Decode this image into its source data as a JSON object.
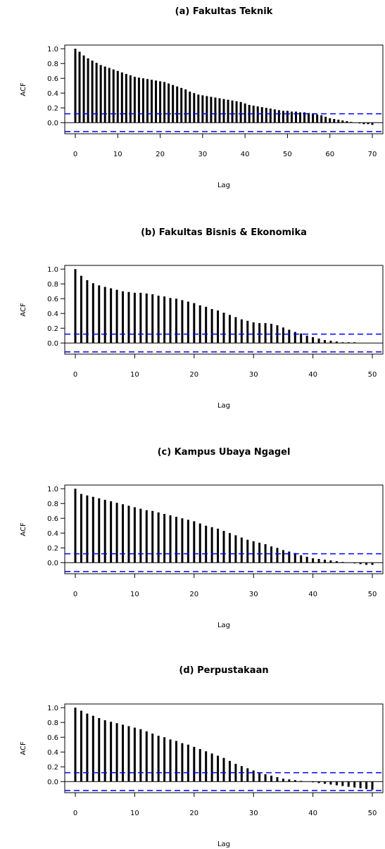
{
  "chart_data": [
    {
      "type": "bar",
      "title": "(a) Fakultas Teknik",
      "xlabel": "Lag",
      "ylabel": "ACF",
      "xlim": [
        0,
        70
      ],
      "ylim": [
        -0.1,
        1.0
      ],
      "xticks": [
        0,
        10,
        20,
        30,
        40,
        50,
        60,
        70
      ],
      "yticks": [
        0.0,
        0.2,
        0.4,
        0.6,
        0.8,
        1.0
      ],
      "ci": [
        0.12,
        -0.12
      ],
      "x": [
        0,
        1,
        2,
        3,
        4,
        5,
        6,
        7,
        8,
        9,
        10,
        11,
        12,
        13,
        14,
        15,
        16,
        17,
        18,
        19,
        20,
        21,
        22,
        23,
        24,
        25,
        26,
        27,
        28,
        29,
        30,
        31,
        32,
        33,
        34,
        35,
        36,
        37,
        38,
        39,
        40,
        41,
        42,
        43,
        44,
        45,
        46,
        47,
        48,
        49,
        50,
        51,
        52,
        53,
        54,
        55,
        56,
        57,
        58,
        59,
        60,
        61,
        62,
        63,
        64,
        65,
        66,
        67,
        68,
        69,
        70
      ],
      "values": [
        1.0,
        0.96,
        0.91,
        0.87,
        0.84,
        0.81,
        0.78,
        0.76,
        0.74,
        0.72,
        0.7,
        0.68,
        0.66,
        0.64,
        0.62,
        0.61,
        0.6,
        0.59,
        0.58,
        0.57,
        0.56,
        0.55,
        0.53,
        0.51,
        0.49,
        0.47,
        0.45,
        0.42,
        0.4,
        0.38,
        0.37,
        0.36,
        0.35,
        0.34,
        0.33,
        0.32,
        0.31,
        0.3,
        0.29,
        0.28,
        0.26,
        0.24,
        0.23,
        0.22,
        0.21,
        0.2,
        0.19,
        0.18,
        0.17,
        0.16,
        0.16,
        0.15,
        0.15,
        0.14,
        0.14,
        0.13,
        0.12,
        0.11,
        0.1,
        0.08,
        0.06,
        0.05,
        0.04,
        0.03,
        0.02,
        0.01,
        0.0,
        -0.01,
        -0.02,
        -0.02,
        -0.03
      ],
      "colors": {
        "bars": "#000000",
        "ci": "#0000ff",
        "zero": "#000000"
      }
    },
    {
      "type": "bar",
      "title": "(b) Fakultas Bisnis & Ekonomika",
      "xlabel": "Lag",
      "ylabel": "ACF",
      "xlim": [
        0,
        50
      ],
      "ylim": [
        -0.1,
        1.0
      ],
      "xticks": [
        0,
        10,
        20,
        30,
        40,
        50
      ],
      "yticks": [
        0.0,
        0.2,
        0.4,
        0.6,
        0.8,
        1.0
      ],
      "ci": [
        0.12,
        -0.12
      ],
      "x": [
        0,
        1,
        2,
        3,
        4,
        5,
        6,
        7,
        8,
        9,
        10,
        11,
        12,
        13,
        14,
        15,
        16,
        17,
        18,
        19,
        20,
        21,
        22,
        23,
        24,
        25,
        26,
        27,
        28,
        29,
        30,
        31,
        32,
        33,
        34,
        35,
        36,
        37,
        38,
        39,
        40,
        41,
        42,
        43,
        44,
        45,
        46,
        47,
        48,
        49,
        50
      ],
      "values": [
        1.0,
        0.91,
        0.85,
        0.81,
        0.78,
        0.76,
        0.74,
        0.72,
        0.7,
        0.69,
        0.68,
        0.68,
        0.67,
        0.66,
        0.64,
        0.63,
        0.61,
        0.6,
        0.58,
        0.56,
        0.54,
        0.51,
        0.49,
        0.46,
        0.44,
        0.41,
        0.38,
        0.35,
        0.32,
        0.3,
        0.28,
        0.27,
        0.27,
        0.26,
        0.24,
        0.21,
        0.18,
        0.15,
        0.13,
        0.1,
        0.08,
        0.06,
        0.04,
        0.03,
        0.02,
        0.01,
        0.01,
        0.01,
        0.0,
        0.0,
        0.0
      ],
      "colors": {
        "bars": "#000000",
        "ci": "#0000ff",
        "zero": "#000000"
      }
    },
    {
      "type": "bar",
      "title": "(c) Kampus Ubaya Ngagel",
      "xlabel": "Lag",
      "ylabel": "ACF",
      "xlim": [
        0,
        50
      ],
      "ylim": [
        -0.1,
        1.0
      ],
      "xticks": [
        0,
        10,
        20,
        30,
        40,
        50
      ],
      "yticks": [
        0.0,
        0.2,
        0.4,
        0.6,
        0.8,
        1.0
      ],
      "ci": [
        0.12,
        -0.12
      ],
      "x": [
        0,
        1,
        2,
        3,
        4,
        5,
        6,
        7,
        8,
        9,
        10,
        11,
        12,
        13,
        14,
        15,
        16,
        17,
        18,
        19,
        20,
        21,
        22,
        23,
        24,
        25,
        26,
        27,
        28,
        29,
        30,
        31,
        32,
        33,
        34,
        35,
        36,
        37,
        38,
        39,
        40,
        41,
        42,
        43,
        44,
        45,
        46,
        47,
        48,
        49,
        50
      ],
      "values": [
        1.0,
        0.93,
        0.91,
        0.89,
        0.87,
        0.85,
        0.83,
        0.81,
        0.79,
        0.77,
        0.75,
        0.73,
        0.71,
        0.7,
        0.68,
        0.66,
        0.64,
        0.62,
        0.6,
        0.58,
        0.56,
        0.53,
        0.5,
        0.48,
        0.46,
        0.43,
        0.4,
        0.37,
        0.34,
        0.31,
        0.29,
        0.27,
        0.25,
        0.22,
        0.2,
        0.17,
        0.15,
        0.13,
        0.1,
        0.08,
        0.06,
        0.05,
        0.04,
        0.03,
        0.02,
        0.01,
        0.0,
        -0.01,
        -0.02,
        -0.03,
        -0.03
      ],
      "colors": {
        "bars": "#000000",
        "ci": "#0000ff",
        "zero": "#000000"
      }
    },
    {
      "type": "bar",
      "title": "(d) Perpustakaan",
      "xlabel": "Lag",
      "ylabel": "ACF",
      "xlim": [
        0,
        50
      ],
      "ylim": [
        -0.1,
        1.0
      ],
      "xticks": [
        0,
        10,
        20,
        30,
        40,
        50
      ],
      "yticks": [
        0.0,
        0.2,
        0.4,
        0.6,
        0.8,
        1.0
      ],
      "ci": [
        0.12,
        -0.12
      ],
      "x": [
        0,
        1,
        2,
        3,
        4,
        5,
        6,
        7,
        8,
        9,
        10,
        11,
        12,
        13,
        14,
        15,
        16,
        17,
        18,
        19,
        20,
        21,
        22,
        23,
        24,
        25,
        26,
        27,
        28,
        29,
        30,
        31,
        32,
        33,
        34,
        35,
        36,
        37,
        38,
        39,
        40,
        41,
        42,
        43,
        44,
        45,
        46,
        47,
        48,
        49,
        50
      ],
      "values": [
        1.0,
        0.96,
        0.92,
        0.89,
        0.86,
        0.83,
        0.81,
        0.79,
        0.77,
        0.75,
        0.73,
        0.71,
        0.68,
        0.65,
        0.62,
        0.6,
        0.57,
        0.55,
        0.52,
        0.5,
        0.47,
        0.44,
        0.41,
        0.38,
        0.35,
        0.32,
        0.28,
        0.24,
        0.21,
        0.18,
        0.15,
        0.12,
        0.1,
        0.08,
        0.06,
        0.04,
        0.03,
        0.02,
        0.01,
        0.0,
        -0.01,
        -0.02,
        -0.03,
        -0.04,
        -0.05,
        -0.06,
        -0.07,
        -0.08,
        -0.09,
        -0.1,
        -0.11
      ],
      "colors": {
        "bars": "#000000",
        "ci": "#0000ff",
        "zero": "#000000"
      }
    }
  ]
}
